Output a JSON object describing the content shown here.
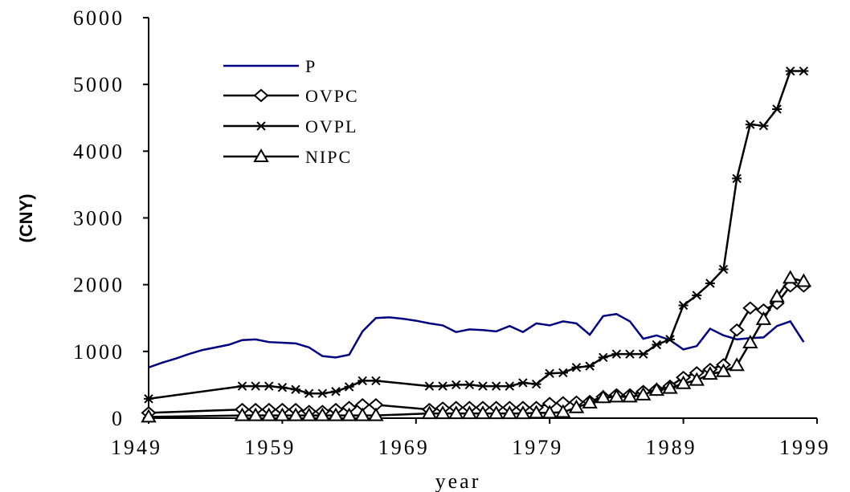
{
  "chart_data": {
    "type": "line",
    "xlabel": "year",
    "ylabel": "(CNY)",
    "xlim": [
      1949,
      1999
    ],
    "xticks": [
      1949,
      1959,
      1969,
      1979,
      1989,
      1999
    ],
    "ylim": [
      0,
      6000
    ],
    "yticks": [
      0,
      1000,
      2000,
      3000,
      4000,
      5000,
      6000
    ],
    "grid": false,
    "legend": "upper-left",
    "series": [
      {
        "name": "P",
        "color": "#000080",
        "marker": null,
        "x": [
          1949,
          1950,
          1951,
          1952,
          1953,
          1954,
          1955,
          1956,
          1957,
          1958,
          1959,
          1960,
          1961,
          1962,
          1963,
          1964,
          1965,
          1966,
          1967,
          1968,
          1969,
          1970,
          1971,
          1972,
          1973,
          1974,
          1975,
          1976,
          1977,
          1978,
          1979,
          1980,
          1981,
          1982,
          1983,
          1984,
          1985,
          1986,
          1987,
          1988,
          1989,
          1990,
          1991,
          1992,
          1993,
          1994,
          1995,
          1996,
          1997,
          1998
        ],
        "values": [
          760,
          830,
          890,
          960,
          1020,
          1060,
          1100,
          1170,
          1180,
          1140,
          1130,
          1120,
          1060,
          930,
          910,
          950,
          1300,
          1500,
          1510,
          1490,
          1460,
          1420,
          1390,
          1290,
          1330,
          1320,
          1300,
          1380,
          1290,
          1420,
          1390,
          1450,
          1420,
          1250,
          1530,
          1560,
          1450,
          1190,
          1240,
          1170,
          1030,
          1080,
          1340,
          1240,
          1180,
          1200,
          1210,
          1380,
          1450,
          1140
        ]
      },
      {
        "name": "OVPC",
        "color": "#000000",
        "marker": "diamond",
        "x": [
          1949,
          1956,
          1957,
          1958,
          1959,
          1960,
          1961,
          1962,
          1963,
          1964,
          1965,
          1966,
          1970,
          1971,
          1972,
          1973,
          1974,
          1975,
          1976,
          1977,
          1978,
          1979,
          1980,
          1981,
          1982,
          1983,
          1984,
          1985,
          1986,
          1987,
          1988,
          1989,
          1990,
          1991,
          1992,
          1993,
          1994,
          1995,
          1996,
          1997,
          1998
        ],
        "values": [
          80,
          130,
          130,
          130,
          130,
          130,
          100,
          100,
          130,
          160,
          200,
          200,
          130,
          150,
          160,
          160,
          160,
          160,
          160,
          160,
          160,
          220,
          230,
          240,
          250,
          320,
          350,
          350,
          400,
          430,
          480,
          610,
          680,
          730,
          800,
          1320,
          1650,
          1620,
          1720,
          1980,
          1980
        ]
      },
      {
        "name": "OVPL",
        "color": "#000000",
        "marker": "asterisk",
        "x": [
          1949,
          1956,
          1957,
          1958,
          1959,
          1960,
          1961,
          1962,
          1963,
          1964,
          1965,
          1966,
          1970,
          1971,
          1972,
          1973,
          1974,
          1975,
          1976,
          1977,
          1978,
          1979,
          1980,
          1981,
          1982,
          1983,
          1984,
          1985,
          1986,
          1987,
          1988,
          1989,
          1990,
          1991,
          1992,
          1993,
          1994,
          1995,
          1996,
          1997,
          1998
        ],
        "values": [
          290,
          480,
          480,
          480,
          460,
          430,
          370,
          370,
          400,
          470,
          560,
          560,
          480,
          480,
          500,
          500,
          480,
          480,
          480,
          530,
          510,
          670,
          680,
          760,
          780,
          910,
          960,
          960,
          960,
          1100,
          1180,
          1690,
          1840,
          2020,
          2230,
          3590,
          4400,
          4380,
          4630,
          5200,
          5200
        ]
      },
      {
        "name": "NIPC",
        "color": "#000000",
        "marker": "triangle",
        "x": [
          1949,
          1956,
          1957,
          1958,
          1959,
          1960,
          1961,
          1962,
          1963,
          1964,
          1965,
          1966,
          1970,
          1971,
          1972,
          1973,
          1974,
          1975,
          1976,
          1977,
          1978,
          1979,
          1980,
          1981,
          1982,
          1983,
          1984,
          1985,
          1986,
          1987,
          1988,
          1989,
          1990,
          1991,
          1992,
          1993,
          1994,
          1995,
          1996,
          1997,
          1998
        ],
        "values": [
          20,
          40,
          40,
          40,
          40,
          40,
          40,
          40,
          40,
          40,
          40,
          40,
          70,
          70,
          70,
          70,
          70,
          70,
          70,
          70,
          80,
          80,
          90,
          160,
          230,
          310,
          320,
          320,
          350,
          420,
          450,
          520,
          570,
          660,
          700,
          790,
          1130,
          1480,
          1820,
          2100,
          2050
        ]
      }
    ]
  }
}
